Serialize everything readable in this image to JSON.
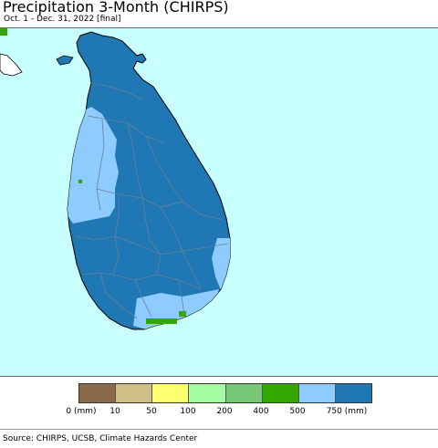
{
  "header": {
    "title": "Precipitation 3-Month (CHIRPS)",
    "subtitle": "Oct. 1 - Dec. 31, 2022 [final]"
  },
  "map": {
    "ocean_color": "#c8ffff",
    "land_base_color": "#1f78b4",
    "region_border_color": "#6b7f95",
    "coast_color": "#000000"
  },
  "legend": {
    "colors": [
      "#8b6a4a",
      "#d0bf86",
      "#ffff72",
      "#a6fca0",
      "#76c876",
      "#33a600",
      "#8ecbff",
      "#1f78b4"
    ],
    "labels": [
      "0 (mm)",
      "10",
      "50",
      "100",
      "200",
      "400",
      "500",
      "750 (mm)"
    ]
  },
  "footer": {
    "source": "Source: CHIRPS, UCSB, Climate Hazards Center"
  }
}
